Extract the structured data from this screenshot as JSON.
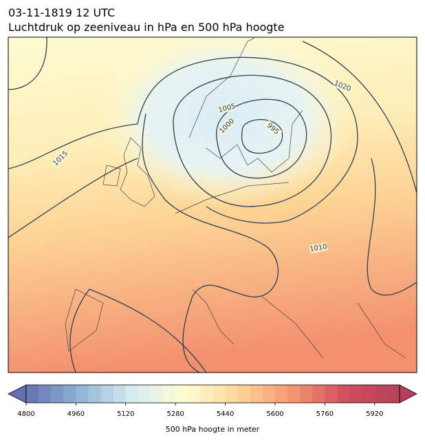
{
  "title_line1": "03-11-1819 12 UTC",
  "title_line2": "Luchtdruk op zeeniveau in hPa en 500 hPa hoogte",
  "isobars": [
    {
      "value": 1020
    },
    {
      "value": 1005
    },
    {
      "value": 1000
    },
    {
      "value": 995
    },
    {
      "value": 1015
    },
    {
      "value": 1010
    }
  ],
  "colorbar": {
    "label": "500 hPa hoogte in meter",
    "range": [
      4800,
      6000
    ],
    "step": 40,
    "ticks": [
      4800,
      4960,
      5120,
      5280,
      5440,
      5600,
      5760,
      5920
    ],
    "colormap": [
      "#6570b0",
      "#8fb4d6",
      "#d8ecf3",
      "#fffdd0",
      "#fdd497",
      "#f59470",
      "#cf4e5e",
      "#b6405c"
    ]
  }
}
